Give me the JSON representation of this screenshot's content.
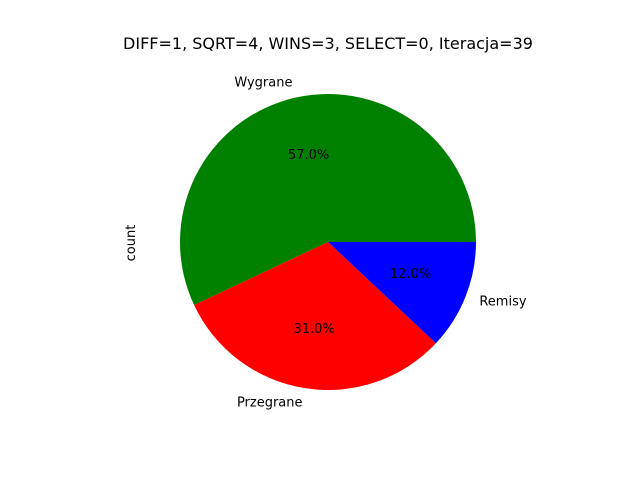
{
  "chart_data": {
    "type": "pie",
    "title": "DIFF=1, SQRT=4, WINS=3, SELECT=0, Iteracja=39",
    "ylabel": "count",
    "start_angle_deg": 0,
    "direction": "counterclockwise",
    "slices": [
      {
        "label": "Wygrane",
        "value": 57,
        "pct_label": "57.0%",
        "color": "#008000"
      },
      {
        "label": "Przegrane",
        "value": 31,
        "pct_label": "31.0%",
        "color": "#ff0000"
      },
      {
        "label": "Remisy",
        "value": 12,
        "pct_label": "12.0%",
        "color": "#0000ff"
      }
    ]
  }
}
